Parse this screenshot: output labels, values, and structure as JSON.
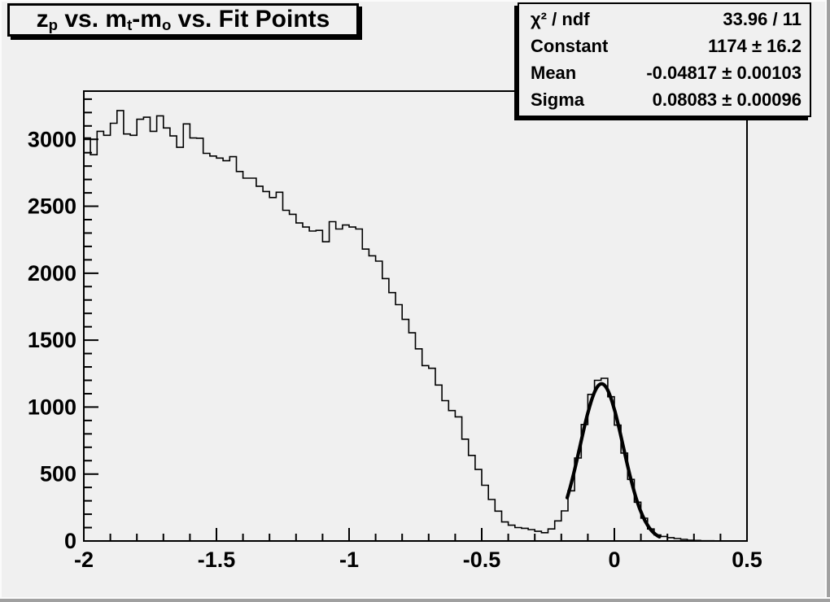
{
  "canvas": {
    "background": "#f0f0f0",
    "bevel_dark": "#a0a0a0",
    "bevel_light": "#fbfbfb",
    "ink": "#000000"
  },
  "title_pave": {
    "parts": [
      "z",
      "p",
      " vs. m",
      "t",
      "-m",
      "o",
      " vs. Fit Points"
    ],
    "plain_text": "z_p vs. m_t-m_o vs. Fit Points"
  },
  "stats_pave": {
    "rows": [
      {
        "label": "χ² / ndf",
        "value": "33.96 / 11"
      },
      {
        "label": "Constant",
        "value": "1174 ± 16.2"
      },
      {
        "label": "Mean",
        "value": "-0.04817 ± 0.00103"
      },
      {
        "label": "Sigma",
        "value": "0.08083 ± 0.00096"
      }
    ]
  },
  "chart_data": {
    "type": "bar",
    "subtype": "histogram-step-outline",
    "title": "z_p vs. m_t-m_o vs. Fit Points",
    "xlabel": "",
    "ylabel": "",
    "xlim": [
      -2,
      0.5
    ],
    "ylim": [
      0,
      3360
    ],
    "grid": false,
    "x_start": -2,
    "bin_width": 0.025,
    "n_bins": 100,
    "values": [
      3010,
      2885,
      3060,
      3030,
      3120,
      3215,
      3040,
      3030,
      3150,
      3165,
      3060,
      3175,
      3085,
      3025,
      2940,
      3115,
      3010,
      3008,
      2895,
      2875,
      2860,
      2840,
      2870,
      2760,
      2710,
      2710,
      2650,
      2610,
      2565,
      2605,
      2470,
      2440,
      2375,
      2345,
      2315,
      2320,
      2235,
      2385,
      2330,
      2360,
      2345,
      2330,
      2180,
      2130,
      2090,
      1960,
      1855,
      1765,
      1655,
      1555,
      1435,
      1310,
      1290,
      1165,
      1048,
      974,
      927,
      761,
      639,
      534,
      416,
      310,
      223,
      142,
      118,
      100,
      95,
      85,
      72,
      62,
      90,
      150,
      225,
      375,
      620,
      870,
      1095,
      1200,
      1215,
      1077,
      865,
      657,
      460,
      290,
      170,
      90,
      45,
      34,
      25,
      18,
      12,
      6,
      4,
      2,
      2,
      1,
      1,
      0,
      0,
      0
    ],
    "x_ticks": {
      "major": [
        -2,
        -1.5,
        -1,
        -0.5,
        0,
        0.5
      ],
      "labels": [
        "-2",
        "-1.5",
        "-1",
        "-0.5",
        "0",
        "0.5"
      ],
      "minor_step": 0.1
    },
    "y_ticks": {
      "major": [
        0,
        500,
        1000,
        1500,
        2000,
        2500,
        3000
      ],
      "labels": [
        "0",
        "500",
        "1000",
        "1500",
        "2000",
        "2500",
        "3000"
      ],
      "minor_step": 100,
      "minor_max": 3300
    },
    "fit": {
      "type": "gaussian",
      "constant": 1174,
      "mean": -0.04817,
      "sigma": 0.08083,
      "chi2": 33.96,
      "ndf": 11,
      "draw_range": [
        -0.178,
        0.17
      ]
    },
    "legend": "stats box top-right"
  }
}
